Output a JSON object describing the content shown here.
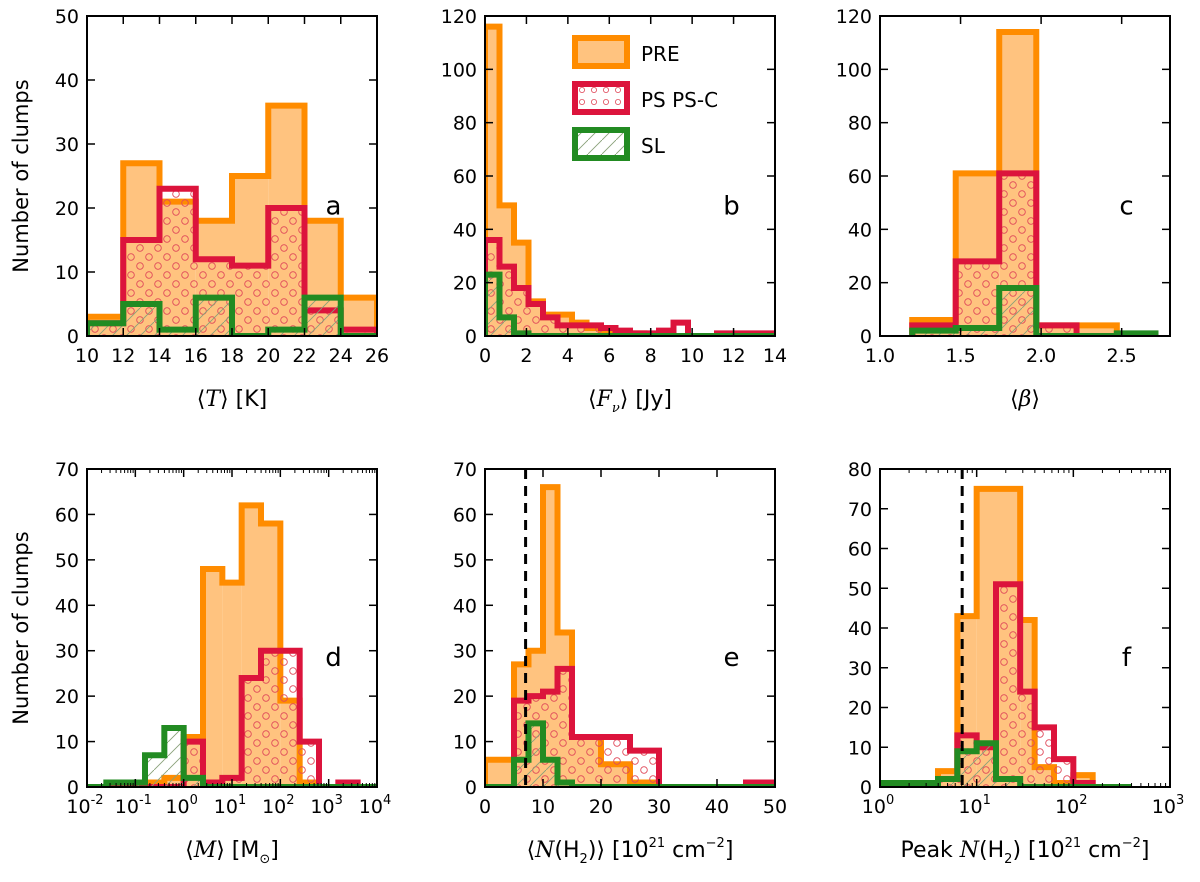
{
  "colors": {
    "pre_edge": "#ff8c00",
    "pre_fill": "#ffc37f",
    "ps_edge": "#dc143c",
    "sl_edge": "#228b22",
    "dashed": "#000000"
  },
  "legend": [
    {
      "key": "pre",
      "label": "PRE"
    },
    {
      "key": "ps",
      "label": "PS PS-C"
    },
    {
      "key": "sl",
      "label": "SL"
    }
  ],
  "chart_data": [
    {
      "id": "a",
      "type": "bar",
      "letter": "a",
      "ylabel": "Number of clumps",
      "xlabel_parts": [
        "⟨",
        "T",
        "⟩ [K]"
      ],
      "xscale": "linear",
      "xlim": [
        10,
        26
      ],
      "ylim": [
        0,
        50
      ],
      "xticks": [
        10,
        12,
        14,
        16,
        18,
        20,
        22,
        24,
        26
      ],
      "yticks": [
        0,
        10,
        20,
        30,
        40,
        50
      ],
      "bin_edges": [
        10,
        12,
        14,
        16,
        18,
        20,
        22,
        24,
        26
      ],
      "series": [
        {
          "key": "pre",
          "name": "PRE",
          "values": [
            3,
            27,
            21,
            18,
            25,
            36,
            18,
            6
          ]
        },
        {
          "key": "ps",
          "name": "PS PS-C",
          "values": [
            2,
            15,
            23,
            12,
            11,
            20,
            4,
            1
          ]
        },
        {
          "key": "sl",
          "name": "SL",
          "values": [
            2,
            5,
            1,
            6,
            0,
            1,
            6,
            0
          ]
        }
      ]
    },
    {
      "id": "b",
      "type": "bar",
      "letter": "b",
      "ylabel": "",
      "xlabel_parts": [
        "⟨",
        "F",
        "ν",
        "⟩ [Jy]"
      ],
      "xscale": "linear",
      "xlim": [
        0,
        14
      ],
      "ylim": [
        0,
        120
      ],
      "xticks": [
        0,
        2,
        4,
        6,
        8,
        10,
        12,
        14
      ],
      "yticks": [
        0,
        20,
        40,
        60,
        80,
        100,
        120
      ],
      "bin_edges": [
        0,
        0.7,
        1.4,
        2.1,
        2.8,
        3.5,
        4.2,
        4.9,
        5.6,
        6.3,
        7.0,
        7.7,
        8.4,
        9.1,
        9.8,
        10.5,
        11.2,
        11.9,
        12.6,
        13.3,
        14.0
      ],
      "series": [
        {
          "key": "pre",
          "name": "PRE",
          "values": [
            116,
            49,
            35,
            13,
            8,
            8,
            5,
            3,
            2,
            1,
            1,
            0,
            0,
            0,
            0,
            0,
            0,
            0,
            0,
            0
          ]
        },
        {
          "key": "ps",
          "name": "PS PS-C",
          "values": [
            36,
            26,
            18,
            12,
            7,
            4,
            4,
            4,
            3,
            2,
            1,
            1,
            2,
            5,
            0,
            0,
            1,
            1,
            1,
            1
          ]
        },
        {
          "key": "sl",
          "name": "SL",
          "values": [
            23,
            7,
            1,
            0,
            0,
            0,
            0,
            0,
            0,
            0,
            0,
            0,
            0,
            0,
            0,
            0,
            0,
            0,
            0,
            0
          ]
        }
      ]
    },
    {
      "id": "c",
      "type": "bar",
      "letter": "c",
      "ylabel": "",
      "xlabel_parts": [
        "⟨",
        "β",
        "⟩"
      ],
      "xscale": "linear",
      "xlim": [
        1.0,
        2.8
      ],
      "ylim": [
        0,
        120
      ],
      "xticks": [
        1.0,
        1.5,
        2.0,
        2.5
      ],
      "xtick_labels": [
        "1.0",
        "1.5",
        "2.0",
        "2.5"
      ],
      "yticks": [
        0,
        20,
        40,
        60,
        80,
        100,
        120
      ],
      "bin_edges": [
        1.2,
        1.47,
        1.74,
        1.97,
        2.22,
        2.47,
        2.71
      ],
      "series": [
        {
          "key": "pre",
          "name": "PRE",
          "values": [
            6,
            61,
            114,
            4,
            4,
            0
          ]
        },
        {
          "key": "ps",
          "name": "PS PS-C",
          "values": [
            4,
            28,
            61,
            4,
            0,
            0
          ]
        },
        {
          "key": "sl",
          "name": "SL",
          "values": [
            2,
            3,
            18,
            0,
            0,
            1
          ]
        }
      ]
    },
    {
      "id": "d",
      "type": "bar",
      "letter": "d",
      "ylabel": "Number of clumps",
      "xlabel_parts": [
        "⟨",
        "M",
        "⟩ [M",
        "⊙",
        "]"
      ],
      "xscale": "log",
      "xlim": [
        -2,
        4
      ],
      "ylim": [
        0,
        70
      ],
      "xticks": [
        -2,
        -1,
        0,
        1,
        2,
        3,
        4
      ],
      "yticks": [
        0,
        10,
        20,
        30,
        40,
        50,
        60,
        70
      ],
      "bin_edges": [
        -2,
        -1.6,
        -1.2,
        -0.8,
        -0.4,
        0,
        0.4,
        0.8,
        1.2,
        1.6,
        2.0,
        2.4,
        2.8,
        3.2,
        3.6,
        4.0
      ],
      "series": [
        {
          "key": "pre",
          "name": "PRE",
          "values": [
            0,
            0,
            0,
            1,
            2,
            11,
            48,
            45,
            62,
            58,
            19,
            1,
            0,
            0,
            0
          ]
        },
        {
          "key": "ps",
          "name": "PS PS-C",
          "values": [
            0,
            0,
            0,
            0,
            0,
            10,
            1,
            2,
            24,
            30,
            30,
            10,
            0,
            1,
            0
          ]
        },
        {
          "key": "sl",
          "name": "SL",
          "values": [
            0,
            1,
            1,
            7,
            13,
            2,
            0,
            0,
            0,
            0,
            0,
            0,
            0,
            0,
            0
          ]
        }
      ]
    },
    {
      "id": "e",
      "type": "bar",
      "letter": "e",
      "ylabel": "",
      "xlabel_parts": [
        "⟨",
        "N",
        "(H",
        "2",
        ")⟩ [10",
        "21",
        " cm",
        "−2",
        "]"
      ],
      "xscale": "linear",
      "xlim": [
        0,
        50
      ],
      "ylim": [
        0,
        70
      ],
      "xticks": [
        0,
        10,
        20,
        30,
        40,
        50
      ],
      "yticks": [
        0,
        10,
        20,
        30,
        40,
        50,
        60,
        70
      ],
      "bin_edges": [
        0,
        5,
        7.5,
        10,
        12.5,
        15,
        20,
        25,
        30,
        35,
        40,
        45,
        50
      ],
      "dashed_x": 7,
      "series": [
        {
          "key": "pre",
          "name": "PRE",
          "values": [
            6,
            27,
            30,
            66,
            34,
            11,
            5,
            1,
            0,
            0,
            0,
            0
          ]
        },
        {
          "key": "ps",
          "name": "PS PS-C",
          "values": [
            0,
            19,
            20,
            21,
            26,
            11,
            11,
            8,
            0,
            0,
            0,
            1
          ]
        },
        {
          "key": "sl",
          "name": "SL",
          "values": [
            0,
            6,
            14,
            6,
            1,
            0,
            0,
            0,
            0,
            0,
            0,
            0
          ]
        }
      ]
    },
    {
      "id": "f",
      "type": "bar",
      "letter": "f",
      "ylabel": "",
      "xlabel_parts": [
        "Peak ",
        "N",
        "(H",
        "2",
        ") [10",
        "21",
        " cm",
        "−2",
        "]"
      ],
      "xscale": "log",
      "xlim": [
        0,
        3
      ],
      "ylim": [
        0,
        80
      ],
      "xticks": [
        0,
        1,
        2,
        3
      ],
      "yticks": [
        0,
        10,
        20,
        30,
        40,
        50,
        60,
        70,
        80
      ],
      "bin_edges": [
        0,
        0.3,
        0.6,
        0.8,
        1.0,
        1.2,
        1.45,
        1.6,
        1.8,
        2.0,
        2.2,
        2.4,
        2.6
      ],
      "dashed_x": 0.85,
      "series": [
        {
          "key": "pre",
          "name": "PRE",
          "values": [
            0,
            0,
            4,
            43,
            75,
            75,
            42,
            5,
            1,
            3,
            0,
            0
          ]
        },
        {
          "key": "ps",
          "name": "PS PS-C",
          "values": [
            0,
            0,
            2,
            13,
            10,
            51,
            24,
            15,
            7,
            1,
            0,
            0
          ]
        },
        {
          "key": "sl",
          "name": "SL",
          "values": [
            1,
            1,
            2,
            9,
            11,
            2,
            0,
            0,
            0,
            0,
            0,
            0
          ]
        }
      ]
    }
  ]
}
